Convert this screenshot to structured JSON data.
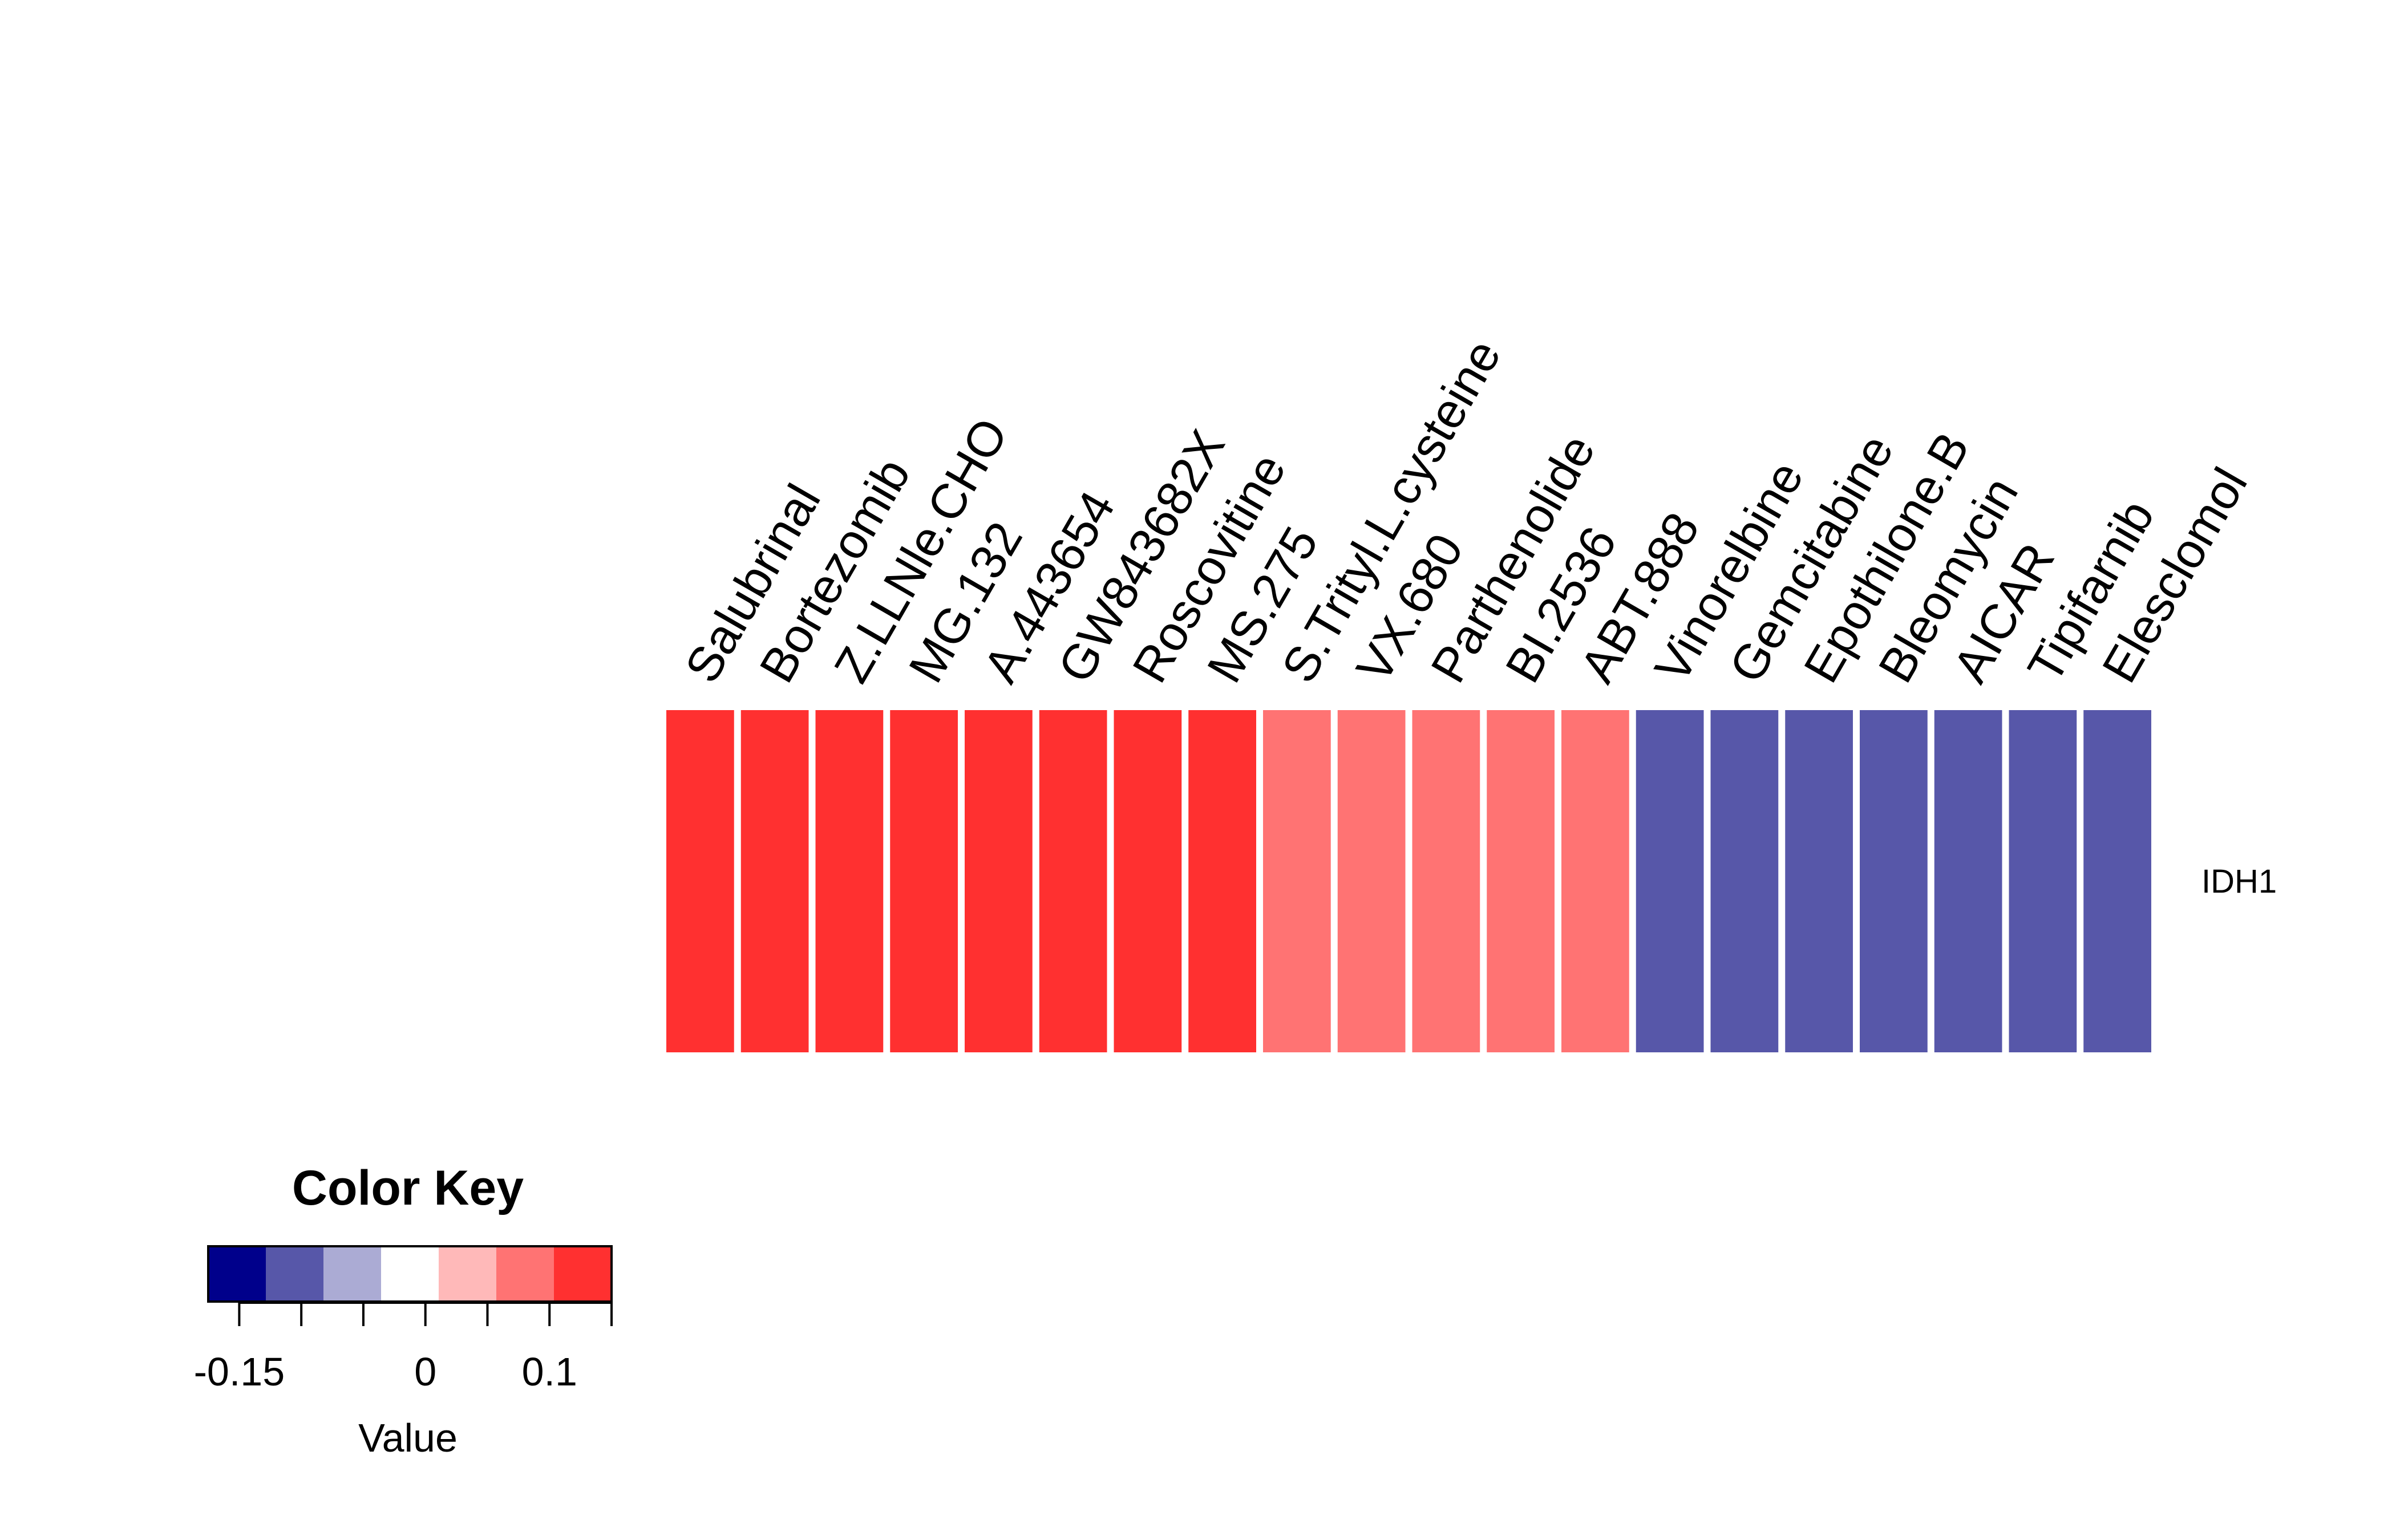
{
  "chart_data": {
    "type": "heatmap",
    "rows": [
      "IDH1"
    ],
    "columns": [
      "Salubrinal",
      "Bortezomib",
      "Z.LLNle.CHO",
      "MG.132",
      "A.443654",
      "GW843682X",
      "Roscovitine",
      "MS.275",
      "S.Trityl.L.cysteine",
      "VX.680",
      "Parthenolide",
      "BI.2536",
      "ABT.888",
      "Vinorelbine",
      "Gemcitabine",
      "Epothilone.B",
      "Bleomycin",
      "AICAR",
      "Tipifarnib",
      "Elesclomol"
    ],
    "values": [
      [
        0.125,
        0.125,
        0.125,
        0.125,
        0.125,
        0.125,
        0.125,
        0.125,
        0.075,
        0.075,
        0.075,
        0.075,
        0.075,
        -0.1,
        -0.1,
        -0.1,
        -0.1,
        -0.1,
        -0.1,
        -0.1
      ]
    ],
    "color_key": {
      "title": "Color Key",
      "xlabel": "Value",
      "range": [
        -0.175,
        0.15
      ],
      "bins": 7,
      "colors": [
        "#00008B",
        "#5757A9",
        "#ABABD4",
        "#FFFFFF",
        "#FFB9B9",
        "#FF7373",
        "#FF3030"
      ],
      "tick_values": [
        -0.15,
        -0.1,
        -0.05,
        0,
        0.05,
        0.1,
        0.15
      ],
      "tick_labels": [
        "-0.15",
        "0",
        "0.1"
      ],
      "tick_label_values": [
        -0.15,
        0,
        0.1
      ]
    }
  }
}
